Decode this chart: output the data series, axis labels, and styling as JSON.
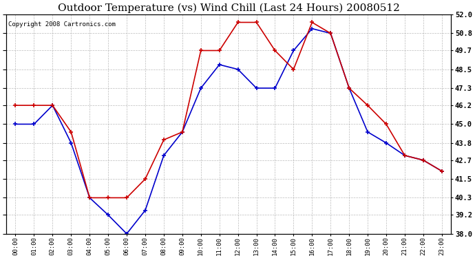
{
  "title": "Outdoor Temperature (vs) Wind Chill (Last 24 Hours) 20080512",
  "copyright": "Copyright 2008 Cartronics.com",
  "hours": [
    "00:00",
    "01:00",
    "02:00",
    "03:00",
    "04:00",
    "05:00",
    "06:00",
    "07:00",
    "08:00",
    "09:00",
    "10:00",
    "11:00",
    "12:00",
    "13:00",
    "14:00",
    "15:00",
    "16:00",
    "17:00",
    "18:00",
    "19:00",
    "20:00",
    "21:00",
    "22:00",
    "23:00"
  ],
  "red": [
    46.2,
    46.2,
    46.2,
    44.5,
    40.3,
    40.3,
    40.3,
    41.5,
    44.0,
    44.5,
    49.7,
    49.7,
    51.5,
    51.5,
    49.7,
    48.5,
    51.5,
    50.8,
    47.3,
    46.2,
    45.0,
    43.0,
    42.7,
    42.0
  ],
  "blue": [
    45.0,
    45.0,
    46.2,
    43.8,
    40.3,
    39.2,
    38.0,
    39.5,
    43.0,
    44.5,
    47.3,
    48.8,
    48.5,
    47.3,
    47.3,
    49.7,
    51.1,
    50.8,
    47.3,
    44.5,
    43.8,
    43.0,
    42.7,
    42.0
  ],
  "red_color": "#cc0000",
  "blue_color": "#0000cc",
  "bg_color": "#ffffff",
  "grid_color": "#aaaaaa",
  "ylim_min": 38.0,
  "ylim_max": 52.0,
  "yticks": [
    38.0,
    39.2,
    40.3,
    41.5,
    42.7,
    43.8,
    45.0,
    46.2,
    47.3,
    48.5,
    49.7,
    50.8,
    52.0
  ],
  "title_fontsize": 11,
  "copyright_fontsize": 6.5
}
